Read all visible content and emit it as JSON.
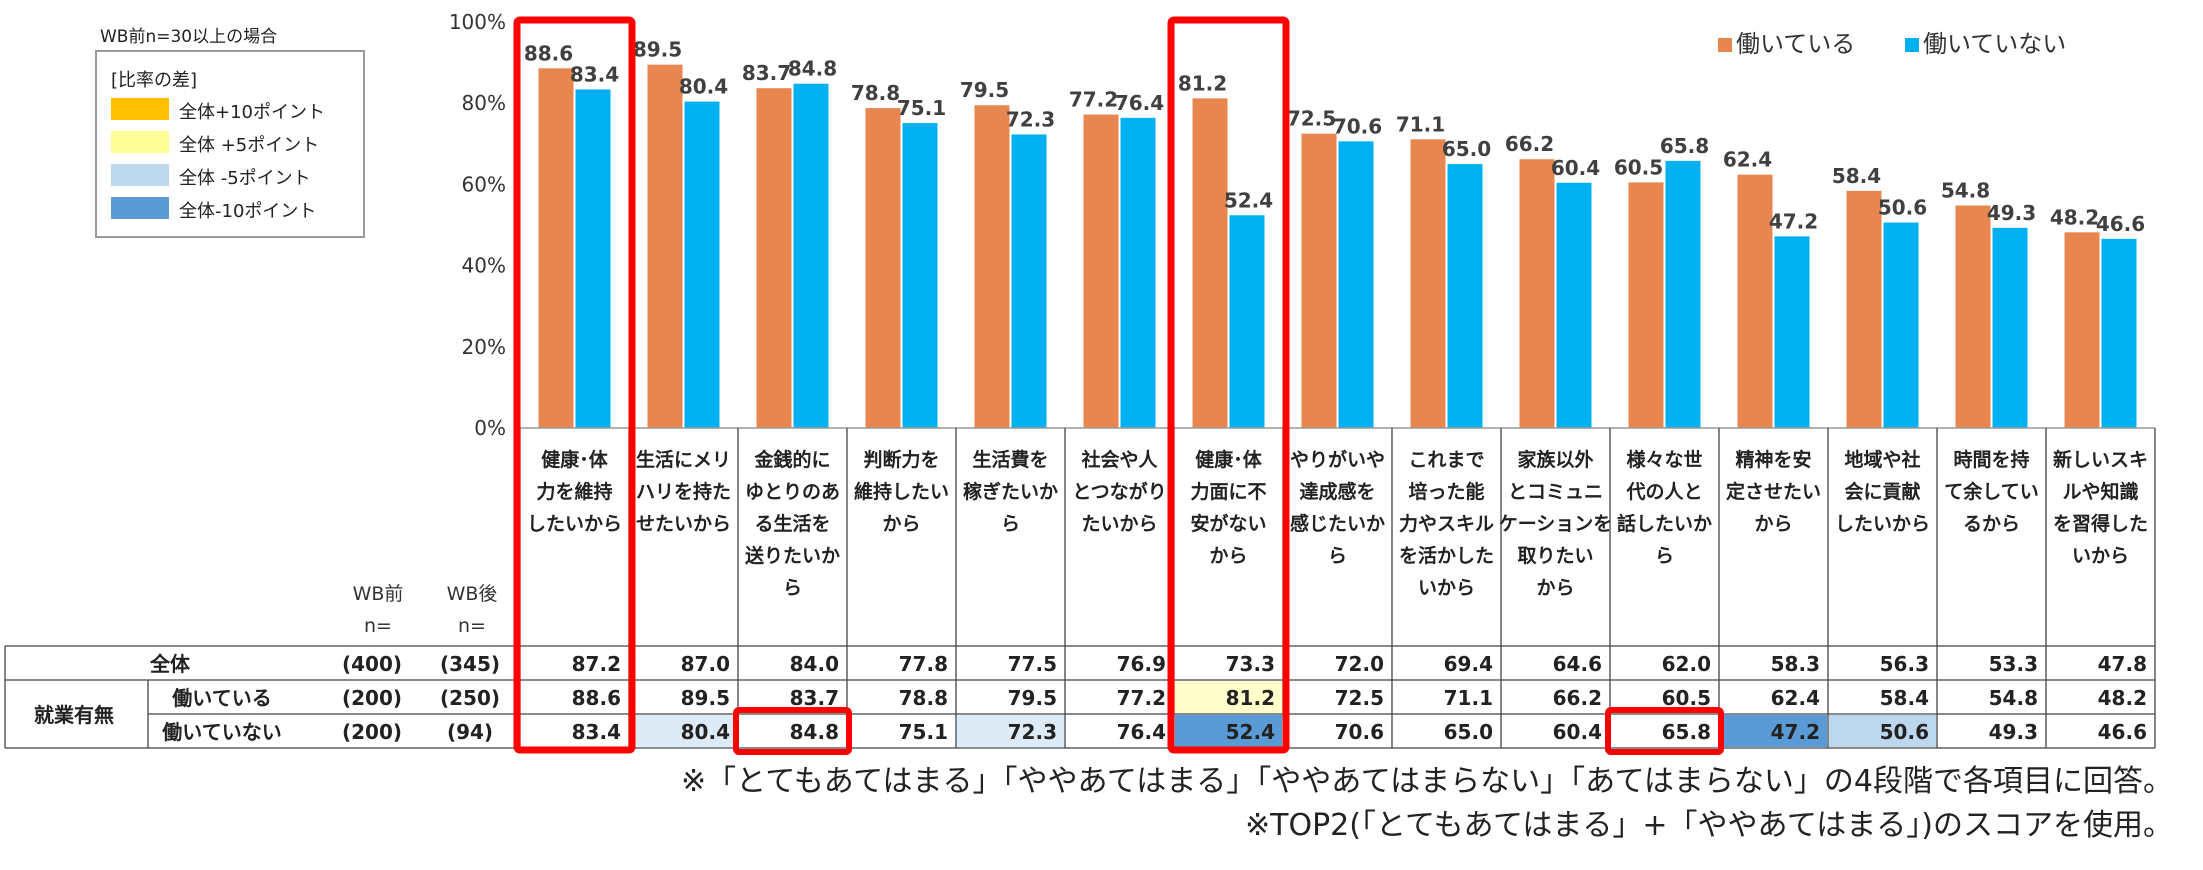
{
  "notes": {
    "top": "WB前n=30以上の場合",
    "footnote1": "※「とてもあてはまる」「ややあてはまる」「ややあてはまらない」「あてはまらない」の4段階で各項目に回答。",
    "footnote2": "※TOP2(「とてもあてはまる」+「ややあてはまる」)のスコアを使用。"
  },
  "ratio_legend": {
    "title": "[比率の差]",
    "items": [
      {
        "label": "全体+10ポイント",
        "color": "#FFC000"
      },
      {
        "label": "全体 +5ポイント",
        "color": "#FFFF99"
      },
      {
        "label": "全体 -5ポイント",
        "color": "#BDD7EE"
      },
      {
        "label": "全体-10ポイント",
        "color": "#5B9BD5"
      }
    ]
  },
  "chart_data": {
    "type": "bar",
    "categories": [
      [
        "健康･体",
        "力を維持",
        "したいから"
      ],
      [
        "生活にメリ",
        "ハリを持た",
        "せたいから"
      ],
      [
        "金銭的に",
        "ゆとりのあ",
        "る生活を",
        "送りたいか",
        "ら"
      ],
      [
        "判断力を",
        "維持したい",
        "から"
      ],
      [
        "生活費を",
        "稼ぎたいか",
        "ら"
      ],
      [
        "社会や人",
        "とつながり",
        "たいから"
      ],
      [
        "健康･体",
        "力面に不",
        "安がない",
        "から"
      ],
      [
        "やりがいや",
        "達成感を",
        "感じたいか",
        "ら"
      ],
      [
        "これまで",
        "培った能",
        "力やスキル",
        "を活かした",
        "いから"
      ],
      [
        "家族以外",
        "とコミュニ",
        "ケーションを",
        "取りたい",
        "から"
      ],
      [
        "様々な世",
        "代の人と",
        "話したいか",
        "ら"
      ],
      [
        "精神を安",
        "定させたい",
        "から"
      ],
      [
        "地域や社",
        "会に貢献",
        "したいから"
      ],
      [
        "時間を持",
        "て余してい",
        "るから"
      ],
      [
        "新しいスキ",
        "ルや知識",
        "を習得した",
        "いから"
      ]
    ],
    "series": [
      {
        "name": "働いている",
        "color": "#E8864F",
        "values": [
          88.6,
          89.5,
          83.7,
          78.8,
          79.5,
          77.2,
          81.2,
          72.5,
          71.1,
          66.2,
          60.5,
          62.4,
          58.4,
          54.8,
          48.2
        ]
      },
      {
        "name": "働いていない",
        "color": "#00B0F0",
        "values": [
          83.4,
          80.4,
          84.8,
          75.1,
          72.3,
          76.4,
          52.4,
          70.6,
          65.0,
          60.4,
          65.8,
          47.2,
          50.6,
          49.3,
          46.6
        ]
      }
    ],
    "y_ticks": [
      "0%",
      "20%",
      "40%",
      "60%",
      "80%",
      "100%"
    ],
    "ylim": [
      0,
      100
    ],
    "legend_position": "top-right",
    "table": {
      "header_wb_before": [
        "WB前",
        "n="
      ],
      "header_wb_after": [
        "WB後",
        "n="
      ],
      "group_label": "就業有無",
      "rows": [
        {
          "label": "全体",
          "n_before": "(400)",
          "n_after": "(345)",
          "values": [
            "87.2",
            "87.0",
            "84.0",
            "77.8",
            "77.5",
            "76.9",
            "73.3",
            "72.0",
            "69.4",
            "64.6",
            "62.0",
            "58.3",
            "56.3",
            "53.3",
            "47.8"
          ],
          "fills": [
            "",
            "",
            "",
            "",
            "",
            "",
            "",
            "",
            "",
            "",
            "",
            "",
            "",
            "",
            ""
          ]
        },
        {
          "label": "働いている",
          "n_before": "(200)",
          "n_after": "(250)",
          "values": [
            "88.6",
            "89.5",
            "83.7",
            "78.8",
            "79.5",
            "77.2",
            "81.2",
            "72.5",
            "71.1",
            "66.2",
            "60.5",
            "62.4",
            "58.4",
            "54.8",
            "48.2"
          ],
          "fills": [
            "",
            "",
            "",
            "",
            "",
            "",
            "#FFFFCC",
            "",
            "",
            "",
            "",
            "",
            "",
            "",
            ""
          ]
        },
        {
          "label": "働いていない",
          "n_before": "(200)",
          "n_after": "(94)",
          "values": [
            "83.4",
            "80.4",
            "84.8",
            "75.1",
            "72.3",
            "76.4",
            "52.4",
            "70.6",
            "65.0",
            "60.4",
            "65.8",
            "47.2",
            "50.6",
            "49.3",
            "46.6"
          ],
          "fills": [
            "",
            "#DDEBF7",
            "",
            "",
            "#DDEBF7",
            "",
            "#5B9BD5",
            "",
            "",
            "",
            "",
            "#5B9BD5",
            "#BDD7EE",
            "",
            ""
          ]
        }
      ]
    },
    "highlights": {
      "columns": [
        0,
        6
      ],
      "cells": [
        {
          "row": 2,
          "col": 2
        },
        {
          "row": 2,
          "col": 10
        }
      ],
      "color": "#FF0000"
    }
  }
}
